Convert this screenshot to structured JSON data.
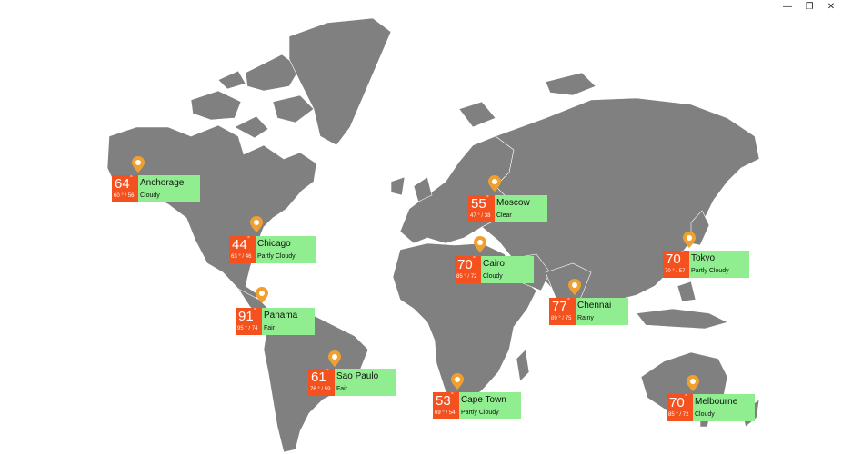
{
  "window": {
    "minimize_icon": "minimize-icon",
    "maximize_icon": "restore-icon",
    "close_icon": "close-icon"
  },
  "colors": {
    "land": "#808080",
    "temp_tile": "#f4511e",
    "info_tile": "#90ee90",
    "pin": "#f0a030"
  },
  "cities": [
    {
      "name": "Anchorage",
      "temp": "64",
      "deg": "°",
      "low": "60",
      "high": "56",
      "condition": "Cloudy"
    },
    {
      "name": "Chicago",
      "temp": "44",
      "deg": "°",
      "low": "63",
      "high": "46",
      "condition": "Partly Cloudy"
    },
    {
      "name": "Panama",
      "temp": "91",
      "deg": "°",
      "low": "95",
      "high": "74",
      "condition": "Fair"
    },
    {
      "name": "Sao Paulo",
      "temp": "61",
      "deg": "°",
      "low": "76",
      "high": "59",
      "condition": "Fair"
    },
    {
      "name": "Cape Town",
      "temp": "53",
      "deg": "°",
      "low": "69",
      "high": "54",
      "condition": "Partly Cloudy"
    },
    {
      "name": "Moscow",
      "temp": "55",
      "deg": "°",
      "low": "47",
      "high": "38",
      "condition": "Clear"
    },
    {
      "name": "Cairo",
      "temp": "70",
      "deg": "°",
      "low": "85",
      "high": "72",
      "condition": "Cloudy"
    },
    {
      "name": "Chennai",
      "temp": "77",
      "deg": "°",
      "low": "89",
      "high": "75",
      "condition": "Rainy"
    },
    {
      "name": "Tokyo",
      "temp": "70",
      "deg": "°",
      "low": "70",
      "high": "57",
      "condition": "Partly Cloudy"
    },
    {
      "name": "Melbourne",
      "temp": "70",
      "deg": "°",
      "low": "85",
      "high": "72",
      "condition": "Cloudy"
    }
  ]
}
